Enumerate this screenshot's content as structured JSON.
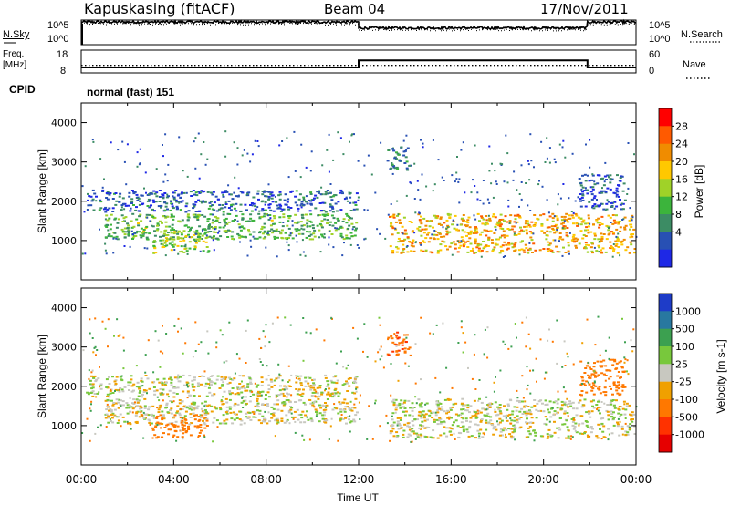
{
  "header": {
    "station": "Kapuskasing (fitACF)",
    "beam": "Beam 04",
    "date": "17/Nov/2011"
  },
  "panels": {
    "nsky": {
      "left_label": "N.Sky",
      "right_label": "N.Search",
      "left_ticks": [
        "10^5",
        "10^0"
      ],
      "right_ticks": [
        "10^5",
        "10^0"
      ]
    },
    "freq": {
      "left_label_1": "Freq.",
      "left_label_2": "[MHz]",
      "right_label": "Nave",
      "left_ticks": [
        "18",
        "8"
      ],
      "right_ticks": [
        "60",
        "0"
      ]
    },
    "cpid": {
      "label": "CPID",
      "mode": "normal (fast) 151"
    }
  },
  "power": {
    "ylabel": "Slant Range [km]",
    "cbar_label": "Power [dB]",
    "cbar_ticks": [
      "28",
      "24",
      "20",
      "16",
      "12",
      "8",
      "4"
    ],
    "cbar_colors": [
      "#ff0000",
      "#ff5a00",
      "#f08c00",
      "#ffc800",
      "#a0d228",
      "#3cb43c",
      "#3c8c64",
      "#2850b4",
      "#1e28e6"
    ]
  },
  "velocity": {
    "ylabel": "Slant Range [km]",
    "cbar_label": "Velocity [m s-1]",
    "cbar_ticks": [
      "1000",
      "500",
      "100",
      "25",
      "-25",
      "-100",
      "-500",
      "-1000"
    ],
    "cbar_colors": [
      "#1e3cc8",
      "#2878a0",
      "#3ca050",
      "#78c83c",
      "#c8c8c0",
      "#f0a000",
      "#ff7800",
      "#ff3200",
      "#e60000"
    ]
  },
  "xaxis": {
    "label": "Time UT",
    "ticks": [
      "00:00",
      "04:00",
      "08:00",
      "12:00",
      "16:00",
      "20:00",
      "00:00"
    ]
  },
  "chart_data": {
    "type": "heatmap",
    "title": "Kapuskasing (fitACF) Beam 04 17/Nov/2011",
    "xlabel": "Time UT",
    "ylabel": "Slant Range [km]",
    "x_range_hours": [
      0,
      24
    ],
    "y_range_km": [
      0,
      4500
    ],
    "y_ticks": [
      1000,
      2000,
      3000,
      4000
    ],
    "cpid_mode": "normal (fast) 151",
    "frequency_MHz": [
      {
        "from_hour": 0,
        "to_hour": 12,
        "value": 10.4
      },
      {
        "from_hour": 12,
        "to_hour": 21.9,
        "value": 13.5
      },
      {
        "from_hour": 21.9,
        "to_hour": 24,
        "value": 10.4
      }
    ],
    "nave": [
      {
        "from_hour": 0,
        "to_hour": 24,
        "value": 20
      }
    ],
    "noise_sky_log10": [
      {
        "from_hour": 0,
        "to_hour": 12,
        "value": 4.6
      },
      {
        "from_hour": 12,
        "to_hour": 21.9,
        "value": 3.4
      },
      {
        "from_hour": 21.9,
        "to_hour": 24,
        "value": 4.6
      }
    ],
    "power_dB_colorbar": [
      4,
      8,
      12,
      16,
      20,
      24,
      28
    ],
    "velocity_colorbar": [
      -1000,
      -500,
      -100,
      -25,
      25,
      100,
      500,
      1000
    ],
    "echo_regions": [
      {
        "t0": 1.0,
        "t1": 11.9,
        "r0": 1050,
        "r1": 1700,
        "power_dB": 12,
        "velocity": 0
      },
      {
        "t0": 0.2,
        "t1": 11.9,
        "r0": 1750,
        "r1": 2300,
        "power_dB": 6,
        "velocity": 0
      },
      {
        "t0": 3.0,
        "t1": 5.5,
        "r0": 700,
        "r1": 1300,
        "power_dB": 14,
        "velocity": -150
      },
      {
        "t0": 13.3,
        "t1": 23.9,
        "r0": 700,
        "r1": 1700,
        "power_dB": 20,
        "velocity": 0
      },
      {
        "t0": 13.2,
        "t1": 14.2,
        "r0": 2800,
        "r1": 3400,
        "power_dB": 9,
        "velocity": -300
      },
      {
        "t0": 21.5,
        "t1": 23.5,
        "r0": 1800,
        "r1": 2700,
        "power_dB": 5,
        "velocity": -200
      }
    ]
  }
}
